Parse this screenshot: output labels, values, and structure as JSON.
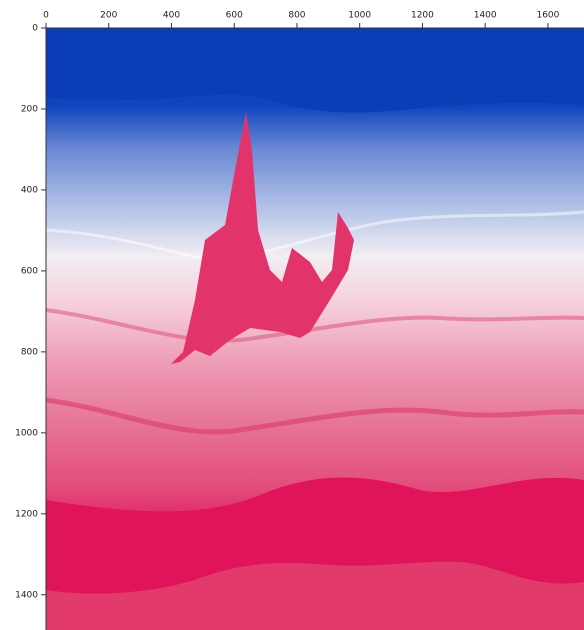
{
  "chart_data": {
    "type": "image",
    "xlim": [
      0,
      1715
    ],
    "xticks": [
      0,
      200,
      400,
      600,
      800,
      1000,
      1200,
      1400,
      1600
    ],
    "ylim": [
      0,
      1487
    ],
    "yticks": [
      0,
      200,
      400,
      600,
      800,
      1000,
      1200,
      1400
    ],
    "y_inverted": true,
    "x_axis_position": "top"
  }
}
